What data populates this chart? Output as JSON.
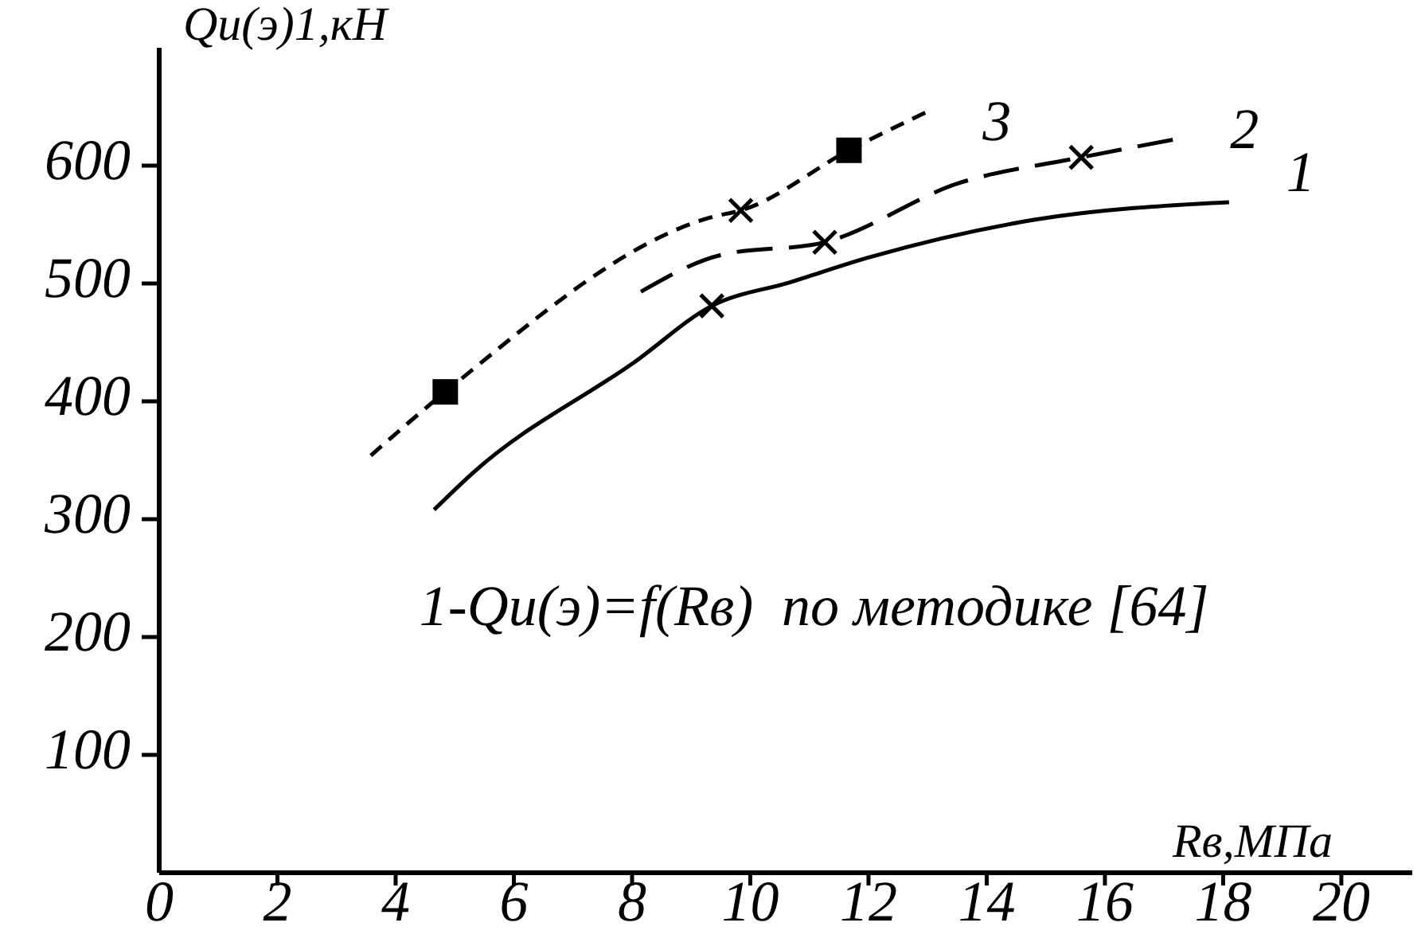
{
  "chart_data": {
    "type": "line",
    "xlabel": "Rв,МПа",
    "ylabel": "Qu(э)1,кН",
    "xlim": [
      0,
      21.2
    ],
    "ylim": [
      0,
      700
    ],
    "xticks": [
      0,
      2,
      4,
      6,
      8,
      10,
      12,
      14,
      16,
      18,
      20
    ],
    "yticks": [
      100,
      200,
      300,
      400,
      500,
      600
    ],
    "grid": false,
    "series": [
      {
        "name": "1",
        "color": "#000000",
        "line_style": "solid",
        "marker": "none",
        "x": [
          4.65,
          5.3,
          8.06,
          9.35,
          10.67,
          12,
          14.8,
          18.1
        ],
        "values": [
          308,
          339,
          434,
          481,
          501,
          522,
          554,
          569
        ]
      },
      {
        "name": "2",
        "color": "#000000",
        "line_style": "dashed",
        "marker": "none",
        "x": [
          8.15,
          9.49,
          11.26,
          13.52,
          15.6,
          17.15
        ],
        "values": [
          493,
          524,
          535,
          585,
          607,
          622
        ]
      },
      {
        "name": "3",
        "color": "#000000",
        "line_style": "dotted",
        "marker": "none",
        "x": [
          3.58,
          4.84,
          9.4,
          9.84,
          11.67,
          12.96
        ],
        "values": [
          354,
          408,
          557,
          562,
          613,
          645
        ]
      },
      {
        "type": "scatter",
        "color": "#000000",
        "marker": "cross",
        "x": [
          9.35,
          9.84,
          11.26,
          15.6
        ],
        "values": [
          481,
          562,
          535,
          607
        ]
      },
      {
        "type": "scatter",
        "color": "#000000",
        "marker": "square",
        "x": [
          4.84,
          11.67
        ],
        "values": [
          408,
          613
        ]
      }
    ],
    "annotations": [
      "1-Qu(э)=f(Rв)  по методике [64]"
    ]
  }
}
